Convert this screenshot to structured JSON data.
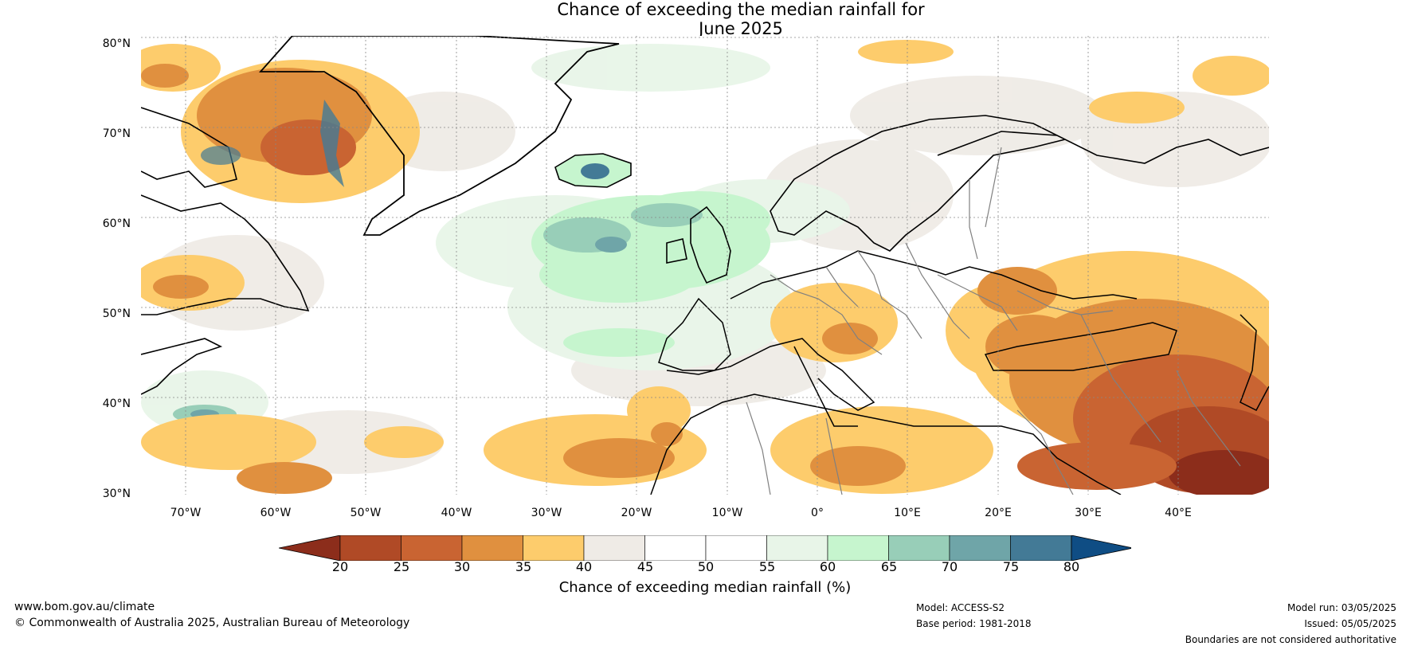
{
  "title_line1": "Chance of exceeding the median rainfall for",
  "title_line2": "June 2025",
  "map": {
    "lat_labels": [
      "80°N",
      "70°N",
      "60°N",
      "50°N",
      "40°N",
      "30°N"
    ],
    "lon_labels": [
      "70°W",
      "60°W",
      "50°W",
      "40°W",
      "30°W",
      "20°W",
      "10°W",
      "0°",
      "10°E",
      "20°E",
      "30°E",
      "40°E"
    ],
    "ocean_color": "#ffffff",
    "coastline_color": "#000000",
    "border_color": "#808080"
  },
  "colorbar": {
    "ticks": [
      "20",
      "25",
      "30",
      "35",
      "40",
      "45",
      "50",
      "55",
      "60",
      "65",
      "70",
      "75",
      "80"
    ],
    "colors": [
      "#8c2d1b",
      "#b04a26",
      "#c96432",
      "#e0903f",
      "#fdcc6c",
      "#efebe6",
      "#ffffff",
      "#ffffff",
      "#e8f5e8",
      "#c6f5ce",
      "#98ceb8",
      "#6fa5a8",
      "#437a96",
      "#0f4d84"
    ],
    "label": "Chance of exceeding median rainfall (%)"
  },
  "footer": {
    "url": "www.bom.gov.au/climate",
    "copyright": "© Commonwealth of Australia 2025, Australian Bureau of Meteorology",
    "model": "Model: ACCESS-S2",
    "base_period": "Base period: 1981-2018",
    "model_run": "Model run: 03/05/2025",
    "issued": "Issued: 05/05/2025",
    "disclaimer": "Boundaries are not considered authoritative"
  }
}
